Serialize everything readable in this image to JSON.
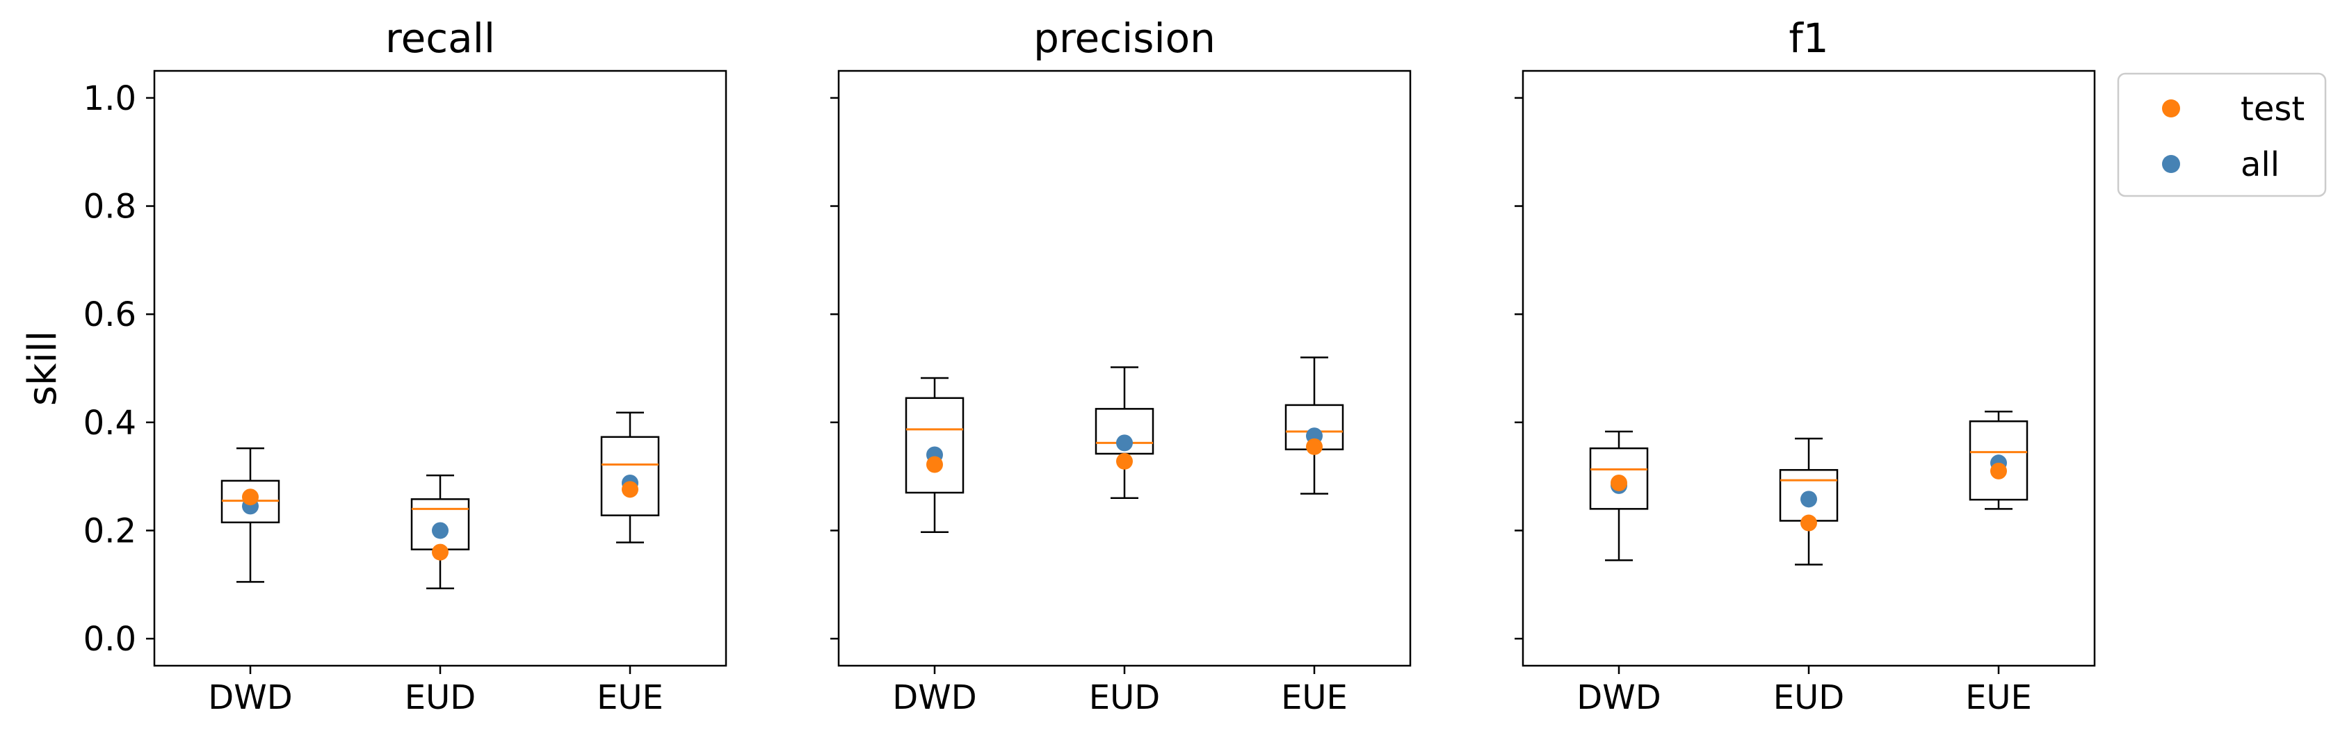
{
  "chart_data": {
    "type": "box",
    "ylabel": "skill",
    "ylim": [
      -0.05,
      1.05
    ],
    "yticks": [
      "0.0",
      "0.2",
      "0.4",
      "0.6",
      "0.8",
      "1.0"
    ],
    "ytick_values": [
      0.0,
      0.2,
      0.4,
      0.6,
      0.8,
      1.0
    ],
    "categories": [
      "DWD",
      "EUD",
      "EUE"
    ],
    "legend": {
      "placement": "outside-top-right",
      "entries": [
        {
          "label": "test",
          "color": "#ff7f0e"
        },
        {
          "label": "all",
          "color": "#4682b4"
        }
      ]
    },
    "colors": {
      "median": "#ff7f0e",
      "test": "#ff7f0e",
      "all": "#4682b4",
      "box": "#000000"
    },
    "panels": [
      {
        "title": "recall",
        "boxes": [
          {
            "category": "DWD",
            "whisker_low": 0.105,
            "q1": 0.215,
            "median": 0.255,
            "q3": 0.292,
            "whisker_high": 0.352
          },
          {
            "category": "EUD",
            "whisker_low": 0.093,
            "q1": 0.165,
            "median": 0.24,
            "q3": 0.258,
            "whisker_high": 0.302
          },
          {
            "category": "EUE",
            "whisker_low": 0.178,
            "q1": 0.228,
            "median": 0.322,
            "q3": 0.373,
            "whisker_high": 0.418
          }
        ],
        "series": [
          {
            "name": "all",
            "values": [
              0.245,
              0.2,
              0.288
            ]
          },
          {
            "name": "test",
            "values": [
              0.262,
              0.16,
              0.276
            ]
          }
        ]
      },
      {
        "title": "precision",
        "boxes": [
          {
            "category": "DWD",
            "whisker_low": 0.197,
            "q1": 0.27,
            "median": 0.387,
            "q3": 0.445,
            "whisker_high": 0.482
          },
          {
            "category": "EUD",
            "whisker_low": 0.26,
            "q1": 0.342,
            "median": 0.362,
            "q3": 0.425,
            "whisker_high": 0.502
          },
          {
            "category": "EUE",
            "whisker_low": 0.268,
            "q1": 0.35,
            "median": 0.383,
            "q3": 0.432,
            "whisker_high": 0.52
          }
        ],
        "series": [
          {
            "name": "all",
            "values": [
              0.34,
              0.362,
              0.375
            ]
          },
          {
            "name": "test",
            "values": [
              0.322,
              0.328,
              0.355
            ]
          }
        ]
      },
      {
        "title": "f1",
        "boxes": [
          {
            "category": "DWD",
            "whisker_low": 0.145,
            "q1": 0.24,
            "median": 0.313,
            "q3": 0.352,
            "whisker_high": 0.383
          },
          {
            "category": "EUD",
            "whisker_low": 0.137,
            "q1": 0.218,
            "median": 0.293,
            "q3": 0.312,
            "whisker_high": 0.37
          },
          {
            "category": "EUE",
            "whisker_low": 0.24,
            "q1": 0.257,
            "median": 0.345,
            "q3": 0.402,
            "whisker_high": 0.42
          }
        ],
        "series": [
          {
            "name": "all",
            "values": [
              0.283,
              0.258,
              0.325
            ]
          },
          {
            "name": "test",
            "values": [
              0.288,
              0.214,
              0.31
            ]
          }
        ]
      }
    ]
  }
}
